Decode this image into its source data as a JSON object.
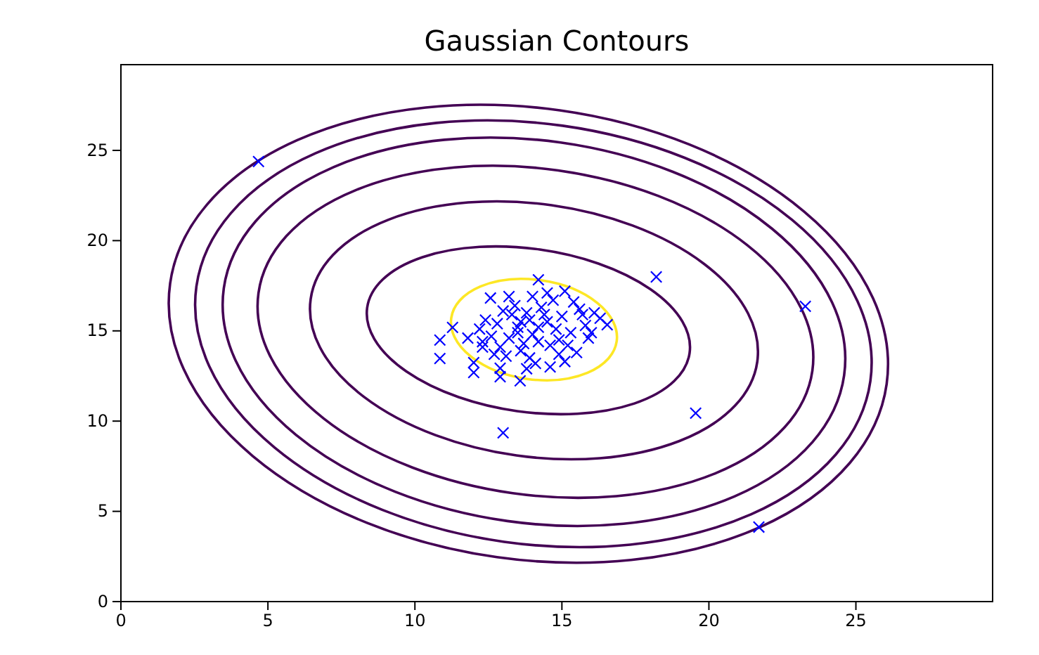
{
  "chart_data": {
    "type": "scatter",
    "title": "Gaussian Contours",
    "xlim": [
      0,
      29.65
    ],
    "ylim": [
      0,
      29.75
    ],
    "xticks": [
      0,
      5,
      10,
      15,
      20,
      25
    ],
    "yticks": [
      0,
      5,
      10,
      15,
      20,
      25
    ],
    "series": [
      {
        "color": "#0000ff",
        "marker": "cross",
        "x": [
          4.68,
          18.21,
          23.28,
          19.55,
          21.7,
          13.0,
          10.85,
          10.85,
          11.28,
          12.0,
          12.0,
          12.9,
          12.9,
          13.58,
          16.54,
          12.57,
          14.2,
          15.1,
          11.8,
          12.3,
          13.5,
          14.0,
          14.5,
          13.8,
          14.6,
          13.2,
          15.0,
          14.3,
          13.6,
          15.3,
          12.8,
          14.9,
          13.9,
          14.2,
          15.6,
          12.6,
          13.4,
          14.7,
          15.8,
          13.1,
          14.1,
          15.2,
          12.4,
          13.7,
          14.8,
          16.1,
          15.5,
          13.3,
          12.9,
          14.4,
          15.9,
          13.9,
          14.6,
          12.2,
          13.0,
          15.4,
          16.3,
          14.0,
          13.5,
          14.9,
          12.7,
          15.1,
          13.8,
          16.0,
          12.3,
          14.5,
          13.2,
          15.7,
          14.2,
          13.6
        ],
        "values": [
          24.38,
          17.99,
          16.36,
          10.44,
          4.13,
          9.35,
          14.49,
          13.47,
          15.19,
          13.24,
          12.69,
          12.46,
          12.93,
          12.23,
          15.34,
          16.82,
          17.83,
          17.2,
          14.6,
          14.1,
          15.2,
          14.8,
          15.5,
          16.0,
          14.2,
          14.6,
          15.8,
          16.3,
          13.9,
          14.9,
          15.4,
          13.7,
          15.6,
          14.4,
          16.2,
          14.7,
          16.4,
          16.7,
          15.3,
          13.6,
          13.2,
          14.2,
          15.6,
          14.3,
          15.1,
          16.0,
          13.8,
          15.9,
          14.1,
          15.9,
          14.6,
          13.5,
          13.0,
          15.1,
          16.1,
          16.6,
          15.7,
          16.9,
          14.9,
          14.5,
          13.7,
          13.3,
          12.9,
          14.9,
          14.4,
          17.1,
          16.9,
          15.9,
          15.2,
          15.5
        ]
      }
    ]
  }
}
